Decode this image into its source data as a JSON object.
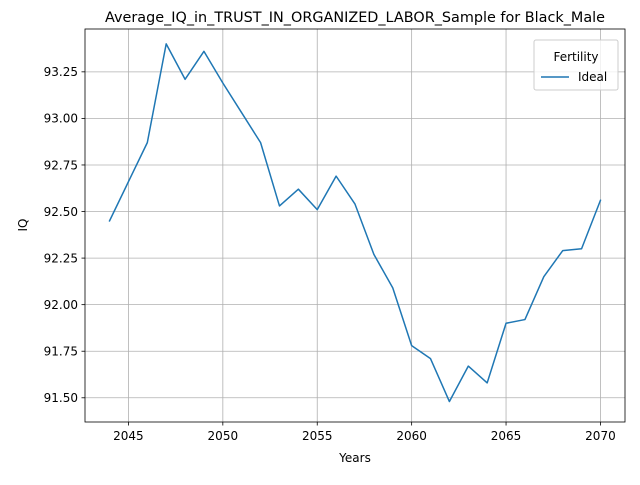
{
  "chart_data": {
    "type": "line",
    "title": "Average_IQ_in_TRUST_IN_ORGANIZED_LABOR_Sample for Black_Male",
    "xlabel": "Years",
    "ylabel": "IQ",
    "xlim": [
      2042.7,
      2071.3
    ],
    "ylim": [
      91.37,
      93.48
    ],
    "grid": true,
    "legend": {
      "title": "Fertility",
      "placement": "top-right"
    },
    "x_ticks": [
      2045,
      2050,
      2055,
      2060,
      2065,
      2070
    ],
    "x_tick_labels": [
      "2045",
      "2050",
      "2055",
      "2060",
      "2065",
      "2070"
    ],
    "y_ticks": [
      91.5,
      91.75,
      92.0,
      92.25,
      92.5,
      92.75,
      93.0,
      93.25
    ],
    "y_tick_labels": [
      "91.50",
      "91.75",
      "92.00",
      "92.25",
      "92.50",
      "92.75",
      "93.00",
      "93.25"
    ],
    "series": [
      {
        "name": "Ideal",
        "color": "#1f77b4",
        "x": [
          2044,
          2045,
          2046,
          2047,
          2048,
          2049,
          2050,
          2051,
          2052,
          2053,
          2054,
          2055,
          2056,
          2057,
          2058,
          2059,
          2060,
          2061,
          2062,
          2063,
          2064,
          2065,
          2066,
          2067,
          2068,
          2069,
          2070
        ],
        "y": [
          92.45,
          92.66,
          92.87,
          93.4,
          93.21,
          93.36,
          93.19,
          93.03,
          92.87,
          92.53,
          92.62,
          92.51,
          92.69,
          92.54,
          92.27,
          92.09,
          91.78,
          91.71,
          91.48,
          91.67,
          91.58,
          91.9,
          91.92,
          92.15,
          92.29,
          92.3,
          92.56
        ]
      }
    ]
  }
}
